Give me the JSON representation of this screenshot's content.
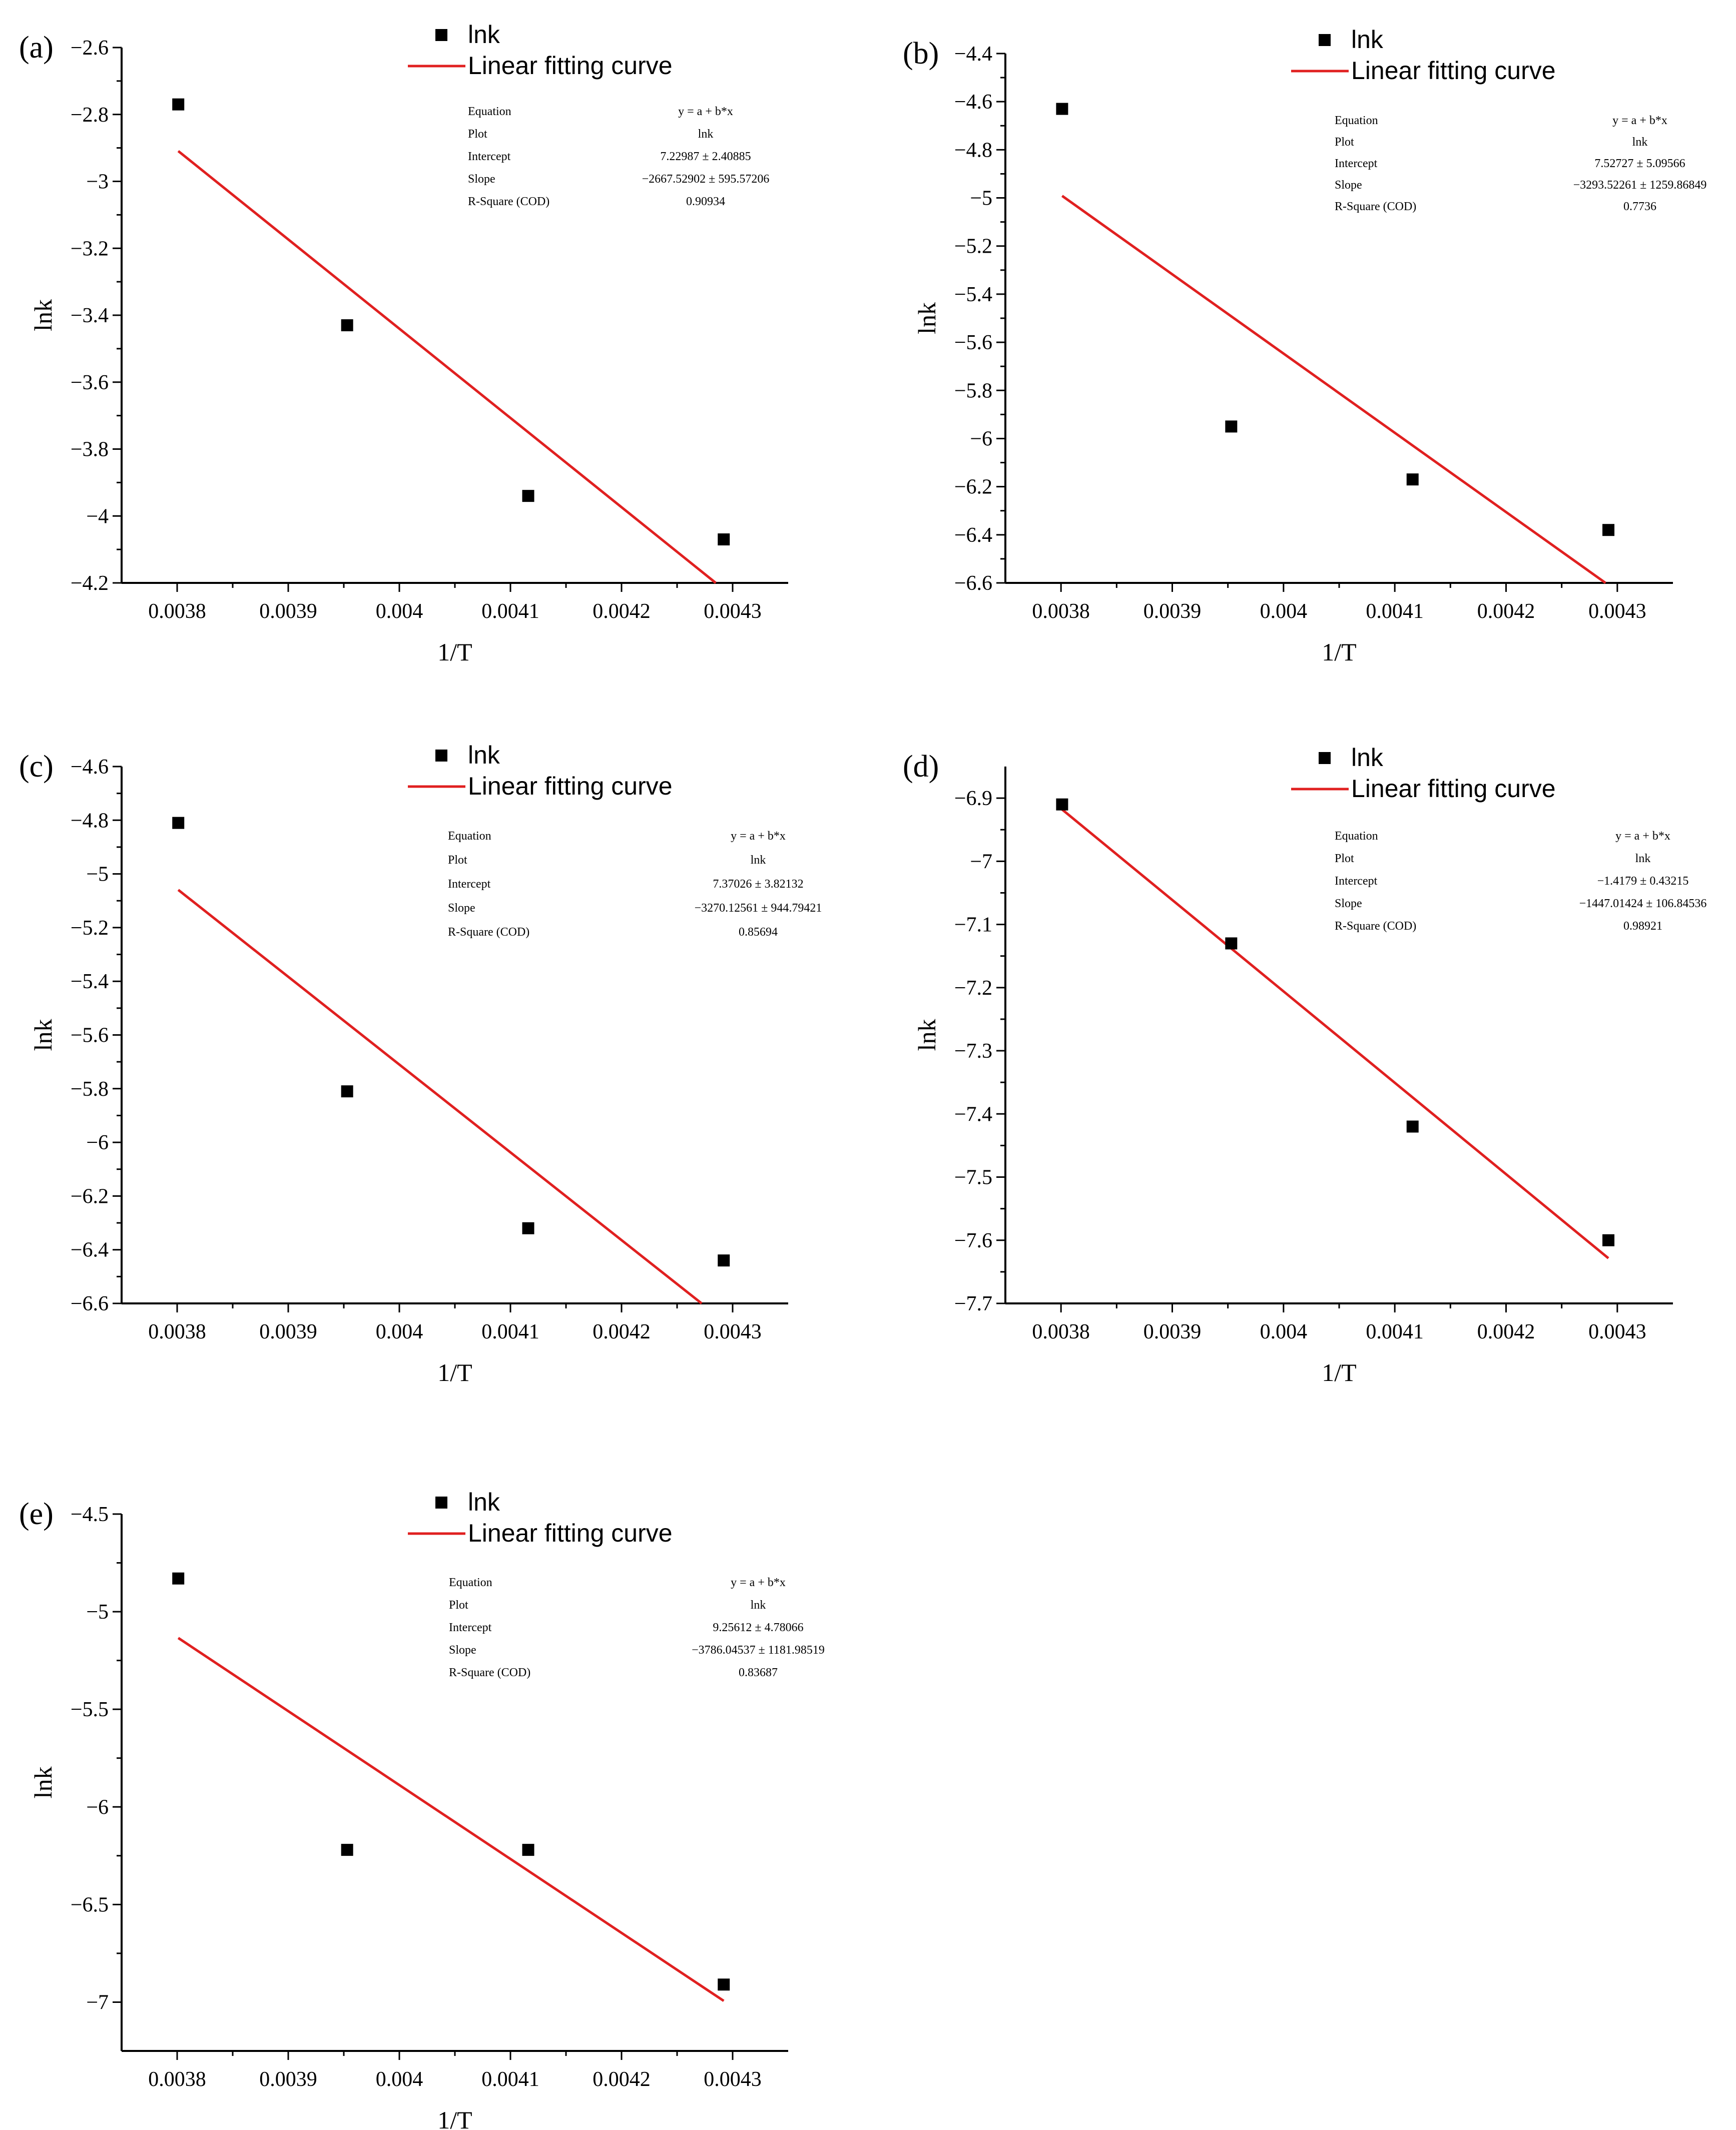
{
  "figure": {
    "legend": {
      "points_label": "lnk",
      "line_label": "Linear fitting curve"
    },
    "colors": {
      "fit": "#e02020",
      "points": "#000000",
      "axis": "#000000"
    },
    "fit_labels": [
      "Equation",
      "Plot",
      "Intercept",
      "Slope",
      "R-Square (COD)"
    ]
  },
  "chart_data": [
    {
      "panel": "(a)",
      "type": "scatter",
      "xlabel": "1/T",
      "ylabel": "lnk",
      "xlim": [
        0.00375,
        0.00435
      ],
      "ylim": [
        -4.2,
        -2.6
      ],
      "xticks": [
        0.0038,
        0.0039,
        0.004,
        0.0041,
        0.0042,
        0.0043
      ],
      "xtick_labels": [
        "0.0038",
        "0.0039",
        "0.004",
        "0.0041",
        "0.0042",
        "0.0043"
      ],
      "yticks": [
        -2.6,
        -2.8,
        -3,
        -3.2,
        -3.4,
        -3.6,
        -3.8,
        -4,
        -4.2
      ],
      "ytick_labels": [
        "−2.6",
        "−2.8",
        "−3",
        "−3.2",
        "−3.4",
        "−3.6",
        "−3.8",
        "−4",
        "−4.2"
      ],
      "x": [
        0.003801,
        0.003953,
        0.004116,
        0.004292
      ],
      "y": [
        -2.77,
        -3.43,
        -3.94,
        -4.07
      ],
      "fit": {
        "intercept": 7.22987,
        "slope": -2667.52902,
        "values": [
          "y = a + b*x",
          "lnk",
          "7.22987 ± 2.40885",
          "−2667.52902 ± 595.57206",
          "0.90934"
        ]
      }
    },
    {
      "panel": "(b)",
      "type": "scatter",
      "xlabel": "1/T",
      "ylabel": "lnk",
      "xlim": [
        0.00375,
        0.00435
      ],
      "ylim": [
        -6.6,
        -4.4
      ],
      "xticks": [
        0.0038,
        0.0039,
        0.004,
        0.0041,
        0.0042,
        0.0043
      ],
      "xtick_labels": [
        "0.0038",
        "0.0039",
        "0.004",
        "0.0041",
        "0.0042",
        "0.0043"
      ],
      "yticks": [
        -4.4,
        -4.6,
        -4.8,
        -5,
        -5.2,
        -5.4,
        -5.6,
        -5.8,
        -6,
        -6.2,
        -6.4,
        -6.6
      ],
      "ytick_labels": [
        "−4.4",
        "−4.6",
        "−4.8",
        "−5",
        "−5.2",
        "−5.4",
        "−5.6",
        "−5.8",
        "−6",
        "−6.2",
        "−6.4",
        "−6.6"
      ],
      "x": [
        0.003801,
        0.003953,
        0.004116,
        0.004292
      ],
      "y": [
        -4.63,
        -5.95,
        -6.17,
        -6.38
      ],
      "fit": {
        "intercept": 7.52727,
        "slope": -3293.52261,
        "values": [
          "y = a + b*x",
          "lnk",
          "7.52727 ± 5.09566",
          "−3293.52261 ± 1259.86849",
          "0.7736"
        ]
      }
    },
    {
      "panel": "(c)",
      "type": "scatter",
      "xlabel": "1/T",
      "ylabel": "lnk",
      "xlim": [
        0.00375,
        0.00435
      ],
      "ylim": [
        -6.6,
        -4.6
      ],
      "xticks": [
        0.0038,
        0.0039,
        0.004,
        0.0041,
        0.0042,
        0.0043
      ],
      "xtick_labels": [
        "0.0038",
        "0.0039",
        "0.004",
        "0.0041",
        "0.0042",
        "0.0043"
      ],
      "yticks": [
        -4.6,
        -4.8,
        -5,
        -5.2,
        -5.4,
        -5.6,
        -5.8,
        -6,
        -6.2,
        -6.4,
        -6.6
      ],
      "ytick_labels": [
        "−4.6",
        "−4.8",
        "−5",
        "−5.2",
        "−5.4",
        "−5.6",
        "−5.8",
        "−6",
        "−6.2",
        "−6.4",
        "−6.6"
      ],
      "x": [
        0.003801,
        0.003953,
        0.004116,
        0.004292
      ],
      "y": [
        -4.81,
        -5.81,
        -6.32,
        -6.44
      ],
      "fit": {
        "intercept": 7.37026,
        "slope": -3270.12561,
        "values": [
          "y = a + b*x",
          "lnk",
          "7.37026 ± 3.82132",
          "−3270.12561 ± 944.79421",
          "0.85694"
        ]
      }
    },
    {
      "panel": "(d)",
      "type": "scatter",
      "xlabel": "1/T",
      "ylabel": "lnk",
      "xlim": [
        0.00375,
        0.00435
      ],
      "ylim": [
        -7.7,
        -6.85
      ],
      "xticks": [
        0.0038,
        0.0039,
        0.004,
        0.0041,
        0.0042,
        0.0043
      ],
      "xtick_labels": [
        "0.0038",
        "0.0039",
        "0.004",
        "0.0041",
        "0.0042",
        "0.0043"
      ],
      "yticks": [
        -6.9,
        -7,
        -7.1,
        -7.2,
        -7.3,
        -7.4,
        -7.5,
        -7.6,
        -7.7
      ],
      "ytick_labels": [
        "−6.9",
        "−7",
        "−7.1",
        "−7.2",
        "−7.3",
        "−7.4",
        "−7.5",
        "−7.6",
        "−7.7"
      ],
      "x": [
        0.003801,
        0.003953,
        0.004116,
        0.004292
      ],
      "y": [
        -6.91,
        -7.13,
        -7.42,
        -7.6
      ],
      "fit": {
        "intercept": -1.4179,
        "slope": -1447.01424,
        "values": [
          "y = a + b*x",
          "lnk",
          "−1.4179 ± 0.43215",
          "−1447.01424 ± 106.84536",
          "0.98921"
        ]
      }
    },
    {
      "panel": "(e)",
      "type": "scatter",
      "xlabel": "1/T",
      "ylabel": "lnk",
      "xlim": [
        0.00375,
        0.00435
      ],
      "ylim": [
        -7.25,
        -4.5
      ],
      "xticks": [
        0.0038,
        0.0039,
        0.004,
        0.0041,
        0.0042,
        0.0043
      ],
      "xtick_labels": [
        "0.0038",
        "0.0039",
        "0.004",
        "0.0041",
        "0.0042",
        "0.0043"
      ],
      "yticks": [
        -4.5,
        -5,
        -5.5,
        -6,
        -6.5,
        -7
      ],
      "ytick_labels": [
        "−4.5",
        "−5",
        "−5.5",
        "−6",
        "−6.5",
        "−7"
      ],
      "x": [
        0.003801,
        0.003953,
        0.004116,
        0.004292
      ],
      "y": [
        -4.83,
        -6.22,
        -6.22,
        -6.91
      ],
      "fit": {
        "intercept": 9.25612,
        "slope": -3786.04537,
        "values": [
          "y = a + b*x",
          "lnk",
          "9.25612 ± 4.78066",
          "−3786.04537 ± 1181.98519",
          "0.83687"
        ]
      }
    }
  ]
}
